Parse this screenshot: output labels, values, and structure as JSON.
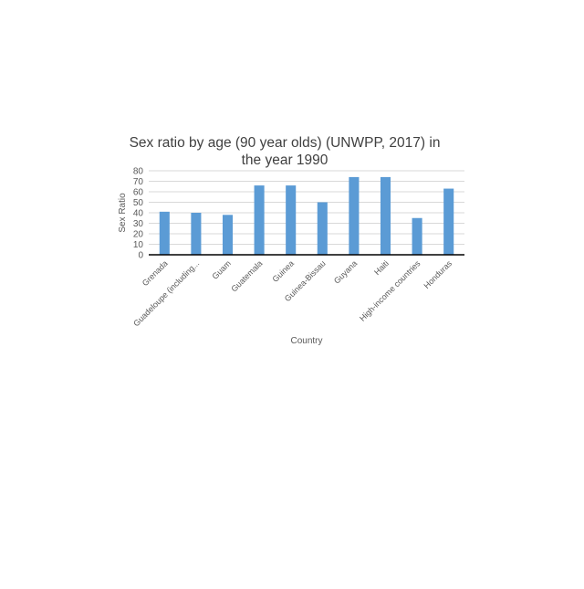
{
  "chart_data": {
    "type": "bar",
    "title_lines": [
      "Sex ratio by age (90 year olds) (UNWPP, 2017) in",
      "the year 1990"
    ],
    "xlabel": "Country",
    "ylabel": "Sex Ratio",
    "ylim": [
      0,
      80
    ],
    "yticks": [
      "0",
      "10",
      "20",
      "30",
      "40",
      "50",
      "60",
      "70",
      "80"
    ],
    "grid": true,
    "legend": "none",
    "bar_color": "#5B9BD5",
    "categories": [
      "Grenada",
      "Guadeloupe (including...",
      "Guam",
      "Guatemala",
      "Guinea",
      "Guinea-Bissau",
      "Guyana",
      "Haiti",
      "High-income countries",
      "Honduras"
    ],
    "values": [
      41,
      40,
      38,
      66,
      66,
      50,
      74,
      74,
      35,
      63
    ]
  }
}
